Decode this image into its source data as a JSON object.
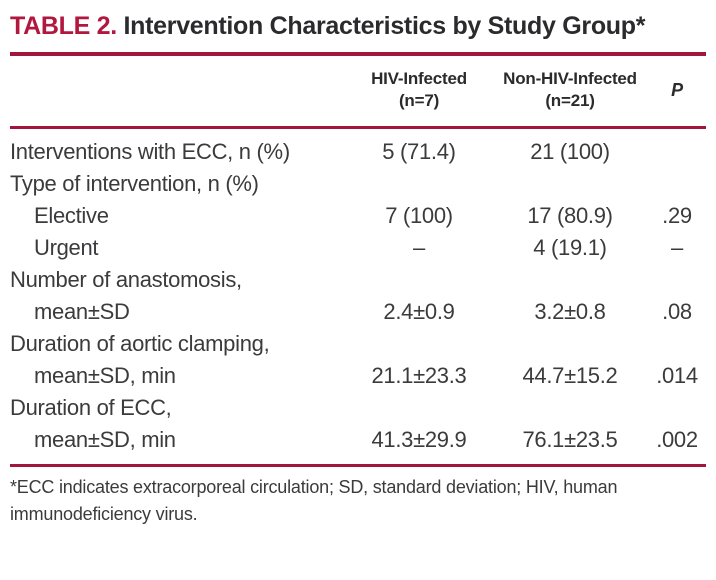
{
  "title": {
    "label": "TABLE 2.",
    "text": "Intervention Characteristics by Study Group*"
  },
  "table": {
    "columns": [
      {
        "label": ""
      },
      {
        "line1": "HIV-Infected",
        "line2": "(n=7)"
      },
      {
        "line1": "Non-HIV-Infected",
        "line2": "(n=21)"
      },
      {
        "label": "P"
      }
    ],
    "rows": [
      {
        "label": "Interventions with ECC, n (%)",
        "label2": "",
        "hiv": "5 (71.4)",
        "non_hiv": "21 (100)",
        "p": ""
      },
      {
        "label": "Type of intervention, n (%)",
        "label2": "",
        "hiv": "",
        "non_hiv": "",
        "p": ""
      },
      {
        "label": "Elective",
        "label2": "",
        "hiv": "7 (100)",
        "non_hiv": "17 (80.9)",
        "p": ".29"
      },
      {
        "label": "Urgent",
        "label2": "",
        "hiv": "–",
        "non_hiv": "4 (19.1)",
        "p": "–"
      },
      {
        "label": "Number of anastomosis,",
        "label2": "mean±SD",
        "hiv": "2.4±0.9",
        "non_hiv": "3.2±0.8",
        "p": ".08"
      },
      {
        "label": "Duration of aortic clamping,",
        "label2": "mean±SD, min",
        "hiv": "21.1±23.3",
        "non_hiv": "44.7±15.2",
        "p": ".014"
      },
      {
        "label": "Duration of ECC,",
        "label2": "mean±SD, min",
        "hiv": "41.3±29.9",
        "non_hiv": "76.1±23.5",
        "p": ".002"
      }
    ]
  },
  "footnote": "*ECC indicates extracorporeal circulation; SD, standard deviation; HIV, human immunodeficiency virus.",
  "colors": {
    "accent_rule_red": "#a2153c",
    "title_red": "#b2173e",
    "title_text": "#2b2b2d",
    "body_text": "#3b3b3d"
  }
}
